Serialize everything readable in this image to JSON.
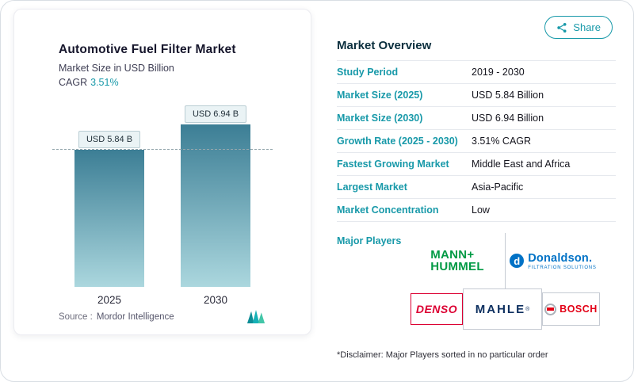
{
  "share": {
    "label": "Share"
  },
  "chart_panel": {
    "cagr_label": "CAGR",
    "source_label": "Source :",
    "source_name": "Mordor Intelligence"
  },
  "chart_data": {
    "type": "bar",
    "title": "Automotive Fuel Filter Market",
    "subtitle": "Market Size in USD Billion",
    "cagr": "3.51%",
    "categories": [
      "2025",
      "2030"
    ],
    "values": [
      5.84,
      6.94
    ],
    "unit": "USD Billion",
    "bar_labels": [
      "USD 5.84 B",
      "USD 6.94 B"
    ],
    "ylim": [
      0,
      6.94
    ],
    "grid": false,
    "legend": false,
    "reference_line": {
      "at_value": 5.84,
      "style": "dashed"
    }
  },
  "overview": {
    "heading": "Market Overview",
    "rows": [
      {
        "label": "Study Period",
        "value": "2019 - 2030"
      },
      {
        "label": "Market Size (2025)",
        "value": "USD 5.84 Billion"
      },
      {
        "label": "Market Size (2030)",
        "value": "USD 6.94 Billion"
      },
      {
        "label": "Growth Rate (2025 - 2030)",
        "value": "3.51% CAGR"
      },
      {
        "label": "Fastest Growing Market",
        "value": "Middle East and Africa"
      },
      {
        "label": "Largest Market",
        "value": "Asia-Pacific"
      },
      {
        "label": "Market Concentration",
        "value": "Low"
      }
    ]
  },
  "major_players": {
    "label": "Major Players",
    "mann_hummel": {
      "line1": "MANN+",
      "line2": "HUMMEL"
    },
    "donaldson": {
      "icon_letter": "d",
      "name": "Donaldson.",
      "tagline": "FILTRATION SOLUTIONS"
    },
    "denso": {
      "name": "DENSO"
    },
    "mahle": {
      "name": "MAHLE",
      "reg_mark": "®"
    },
    "bosch": {
      "name": "BOSCH"
    },
    "disclaimer": "*Disclaimer: Major Players sorted in no particular order"
  },
  "colors": {
    "accent-teal": "#1899a9",
    "heading-navy": "#0b2f3e",
    "bar-top": "#3c7e95",
    "bar-bottom": "#abd7de",
    "mann-green": "#009a44",
    "donaldson-blue": "#0072c6",
    "denso-red": "#dc0032",
    "mahle-navy": "#0d2f5f",
    "bosch-red": "#e30016"
  }
}
